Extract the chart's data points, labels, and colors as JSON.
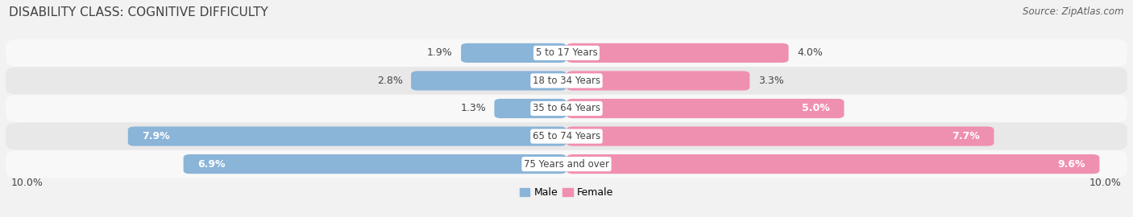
{
  "title": "DISABILITY CLASS: COGNITIVE DIFFICULTY",
  "source": "Source: ZipAtlas.com",
  "categories": [
    "5 to 17 Years",
    "18 to 34 Years",
    "35 to 64 Years",
    "65 to 74 Years",
    "75 Years and over"
  ],
  "male_values": [
    1.9,
    2.8,
    1.3,
    7.9,
    6.9
  ],
  "female_values": [
    4.0,
    3.3,
    5.0,
    7.7,
    9.6
  ],
  "male_color": "#8ab4d8",
  "female_color": "#f090b0",
  "background_color": "#f2f2f2",
  "row_bg_light": "#f8f8f8",
  "row_bg_dark": "#e8e8e8",
  "xlim": 10.0,
  "legend_male": "Male",
  "legend_female": "Female",
  "title_fontsize": 11,
  "source_fontsize": 8.5,
  "label_fontsize": 9,
  "category_fontsize": 8.5,
  "bar_height": 0.7
}
